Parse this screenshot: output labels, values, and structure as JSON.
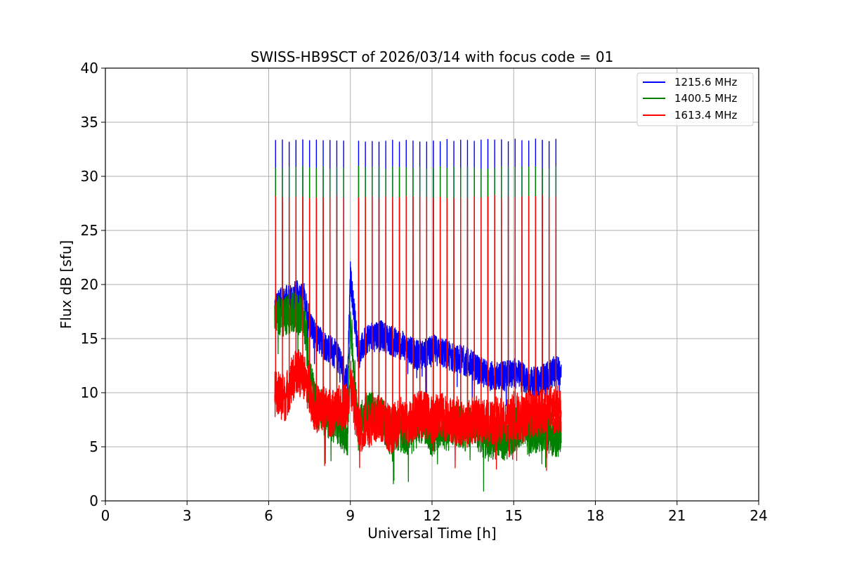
{
  "chart_data": {
    "type": "line",
    "title": "SWISS-HB9SCT of 2026/03/14 with focus code = 01",
    "xlabel": "Universal Time [h]",
    "ylabel": "Flux dB [sfu]",
    "xlim": [
      0,
      24
    ],
    "ylim": [
      0,
      40
    ],
    "xticks": [
      0,
      3,
      6,
      9,
      12,
      15,
      18,
      21,
      24
    ],
    "yticks": [
      0,
      5,
      10,
      15,
      20,
      25,
      30,
      35,
      40
    ],
    "xtick_labels": [
      "0",
      "3",
      "6",
      "9",
      "12",
      "15",
      "18",
      "21",
      "24"
    ],
    "ytick_labels": [
      "0",
      "5",
      "10",
      "15",
      "20",
      "25",
      "30",
      "35",
      "40"
    ],
    "grid": true,
    "legend_position": "top-right",
    "observation_start_h": 6.22,
    "observation_end_h": 16.75,
    "calibration_spike_times_h": [
      6.25,
      6.5,
      6.75,
      7.0,
      7.25,
      7.5,
      7.75,
      8.0,
      8.25,
      8.5,
      8.75,
      9.3,
      9.55,
      9.8,
      10.05,
      10.3,
      10.55,
      10.8,
      11.05,
      11.3,
      11.55,
      11.8,
      12.05,
      12.3,
      12.55,
      12.8,
      13.05,
      13.3,
      13.55,
      13.8,
      14.05,
      14.3,
      14.55,
      14.8,
      15.05,
      15.3,
      15.55,
      15.8,
      16.05,
      16.3,
      16.55
    ],
    "series": [
      {
        "name": "1215.6 MHz",
        "color": "#0000ff",
        "spike_peak": 33.3,
        "x": [
          6.22,
          6.6,
          7.0,
          7.3,
          7.5,
          7.7,
          8.0,
          8.3,
          8.6,
          8.9,
          9.0,
          9.3,
          9.6,
          9.9,
          10.2,
          10.5,
          10.8,
          11.1,
          11.4,
          11.7,
          12.0,
          12.3,
          12.6,
          12.9,
          13.2,
          13.5,
          13.8,
          14.1,
          14.4,
          14.7,
          15.0,
          15.3,
          15.6,
          15.9,
          16.2,
          16.5,
          16.75
        ],
        "values": [
          18.0,
          18.5,
          19.0,
          18.8,
          16.5,
          15.2,
          14.5,
          14.0,
          13.0,
          11.0,
          20.8,
          13.5,
          15.0,
          15.5,
          15.2,
          14.8,
          14.5,
          14.0,
          13.5,
          13.5,
          14.0,
          13.8,
          13.5,
          13.0,
          13.0,
          12.5,
          12.0,
          11.5,
          11.5,
          11.5,
          11.8,
          11.5,
          11.0,
          11.0,
          11.5,
          12.0,
          12.0
        ]
      },
      {
        "name": "1400.5 MHz",
        "color": "#008000",
        "spike_peak": 30.8,
        "x": [
          6.22,
          6.6,
          7.0,
          7.3,
          7.5,
          7.7,
          8.0,
          8.3,
          8.6,
          8.9,
          9.0,
          9.3,
          9.6,
          9.9,
          10.2,
          10.5,
          10.8,
          11.1,
          11.4,
          11.7,
          12.0,
          12.3,
          12.6,
          12.9,
          13.2,
          13.5,
          13.8,
          14.1,
          14.4,
          14.7,
          15.0,
          15.3,
          15.6,
          15.9,
          16.2,
          16.5,
          16.75
        ],
        "values": [
          17.5,
          17.0,
          17.5,
          17.0,
          12.0,
          9.0,
          8.0,
          7.5,
          7.0,
          6.0,
          17.0,
          6.5,
          8.5,
          8.0,
          7.5,
          6.0,
          6.5,
          6.0,
          6.5,
          7.5,
          6.0,
          7.0,
          6.5,
          7.0,
          6.5,
          7.0,
          6.0,
          5.5,
          6.0,
          5.5,
          6.5,
          7.0,
          6.0,
          6.5,
          6.5,
          6.0,
          6.0
        ]
      },
      {
        "name": "1613.4 MHz",
        "color": "#ff0000",
        "spike_peak": 28.1,
        "x": [
          6.22,
          6.6,
          7.0,
          7.3,
          7.5,
          7.7,
          8.0,
          8.3,
          8.6,
          8.9,
          9.0,
          9.3,
          9.6,
          9.9,
          10.2,
          10.5,
          10.8,
          11.1,
          11.4,
          11.7,
          12.0,
          12.3,
          12.6,
          12.9,
          13.2,
          13.5,
          13.8,
          14.1,
          14.4,
          14.7,
          15.0,
          15.3,
          15.6,
          15.9,
          16.2,
          16.5,
          16.75
        ],
        "values": [
          10.0,
          9.5,
          12.0,
          11.5,
          10.0,
          8.5,
          8.5,
          8.0,
          8.5,
          9.0,
          11.0,
          6.5,
          7.0,
          7.5,
          7.5,
          6.5,
          7.5,
          7.0,
          8.0,
          8.0,
          7.5,
          8.0,
          7.5,
          7.5,
          7.0,
          7.5,
          7.5,
          7.0,
          7.5,
          7.0,
          8.0,
          7.5,
          8.0,
          8.0,
          8.5,
          8.5,
          8.5
        ]
      }
    ]
  }
}
